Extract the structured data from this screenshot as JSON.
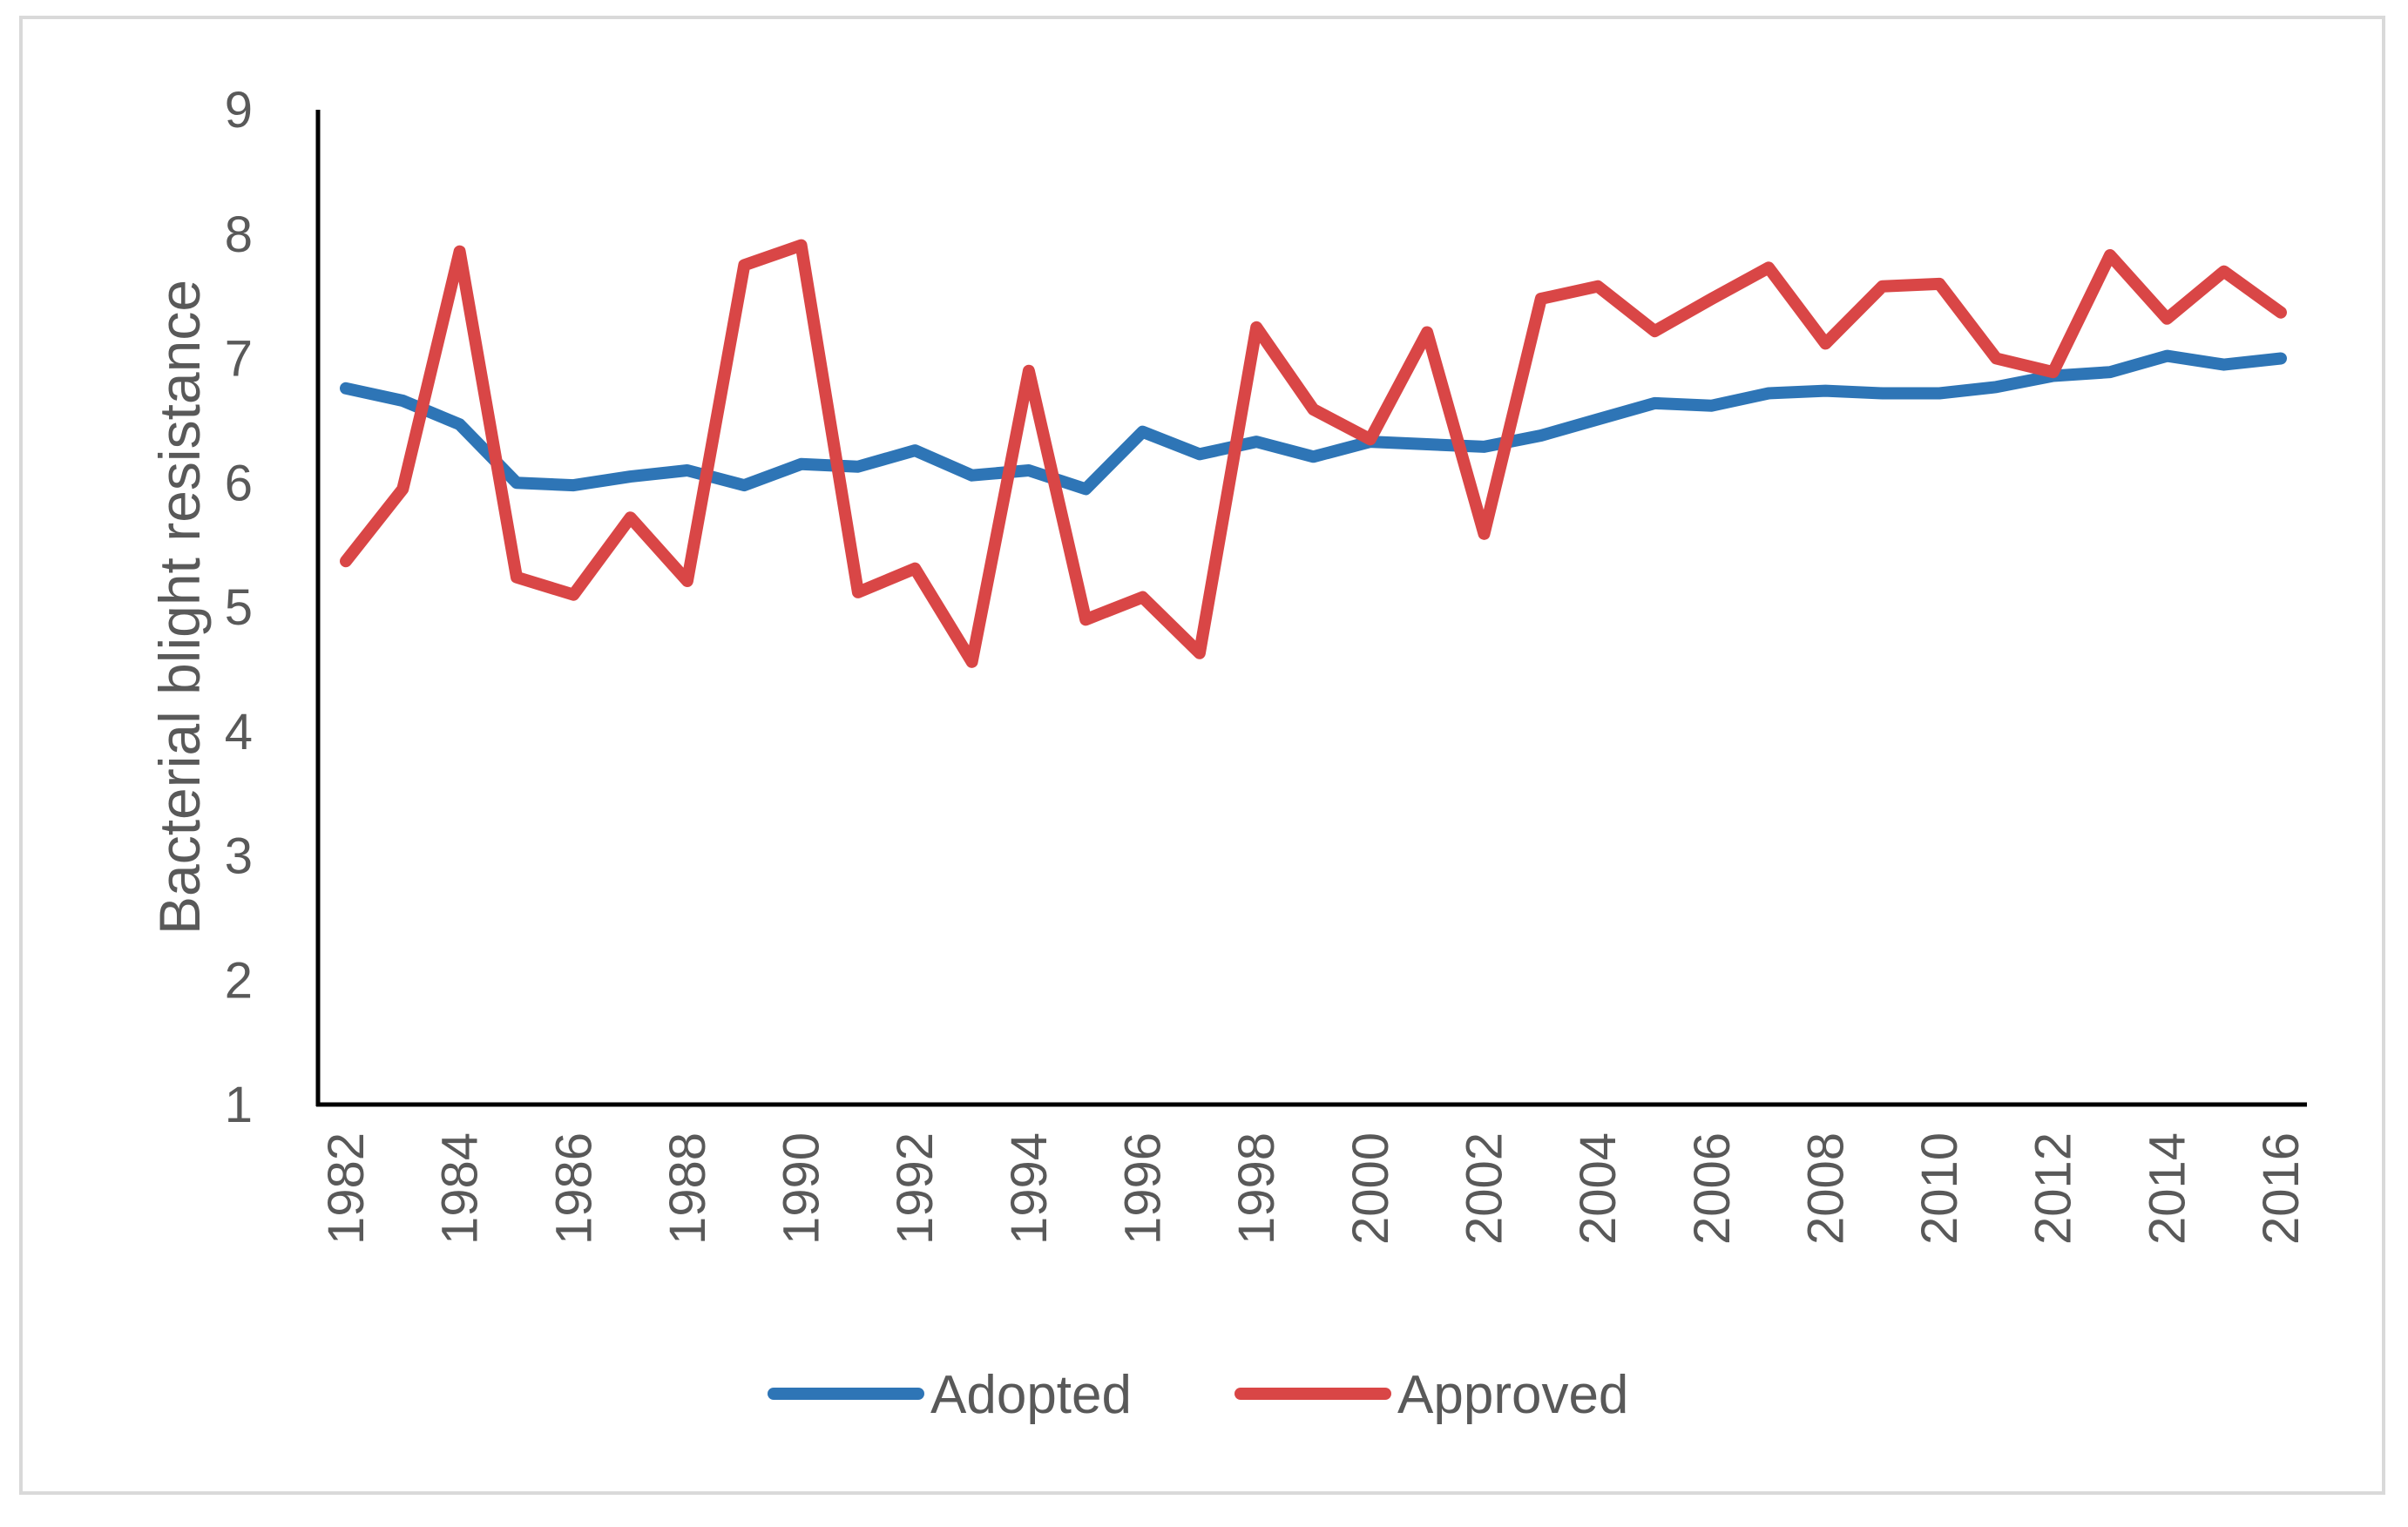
{
  "chart_data": {
    "type": "line",
    "title": "",
    "xlabel": "",
    "ylabel": "Bacterial blight resistance",
    "ylim": [
      1,
      9
    ],
    "yticks": [
      1,
      2,
      3,
      4,
      5,
      6,
      7,
      8,
      9
    ],
    "x": [
      1982,
      1983,
      1984,
      1985,
      1986,
      1987,
      1988,
      1989,
      1990,
      1991,
      1992,
      1993,
      1994,
      1995,
      1996,
      1997,
      1998,
      1999,
      2000,
      2001,
      2002,
      2003,
      2004,
      2005,
      2006,
      2007,
      2008,
      2009,
      2010,
      2011,
      2012,
      2013,
      2014,
      2015,
      2016
    ],
    "xtick_labels": [
      "1982",
      "1984",
      "1986",
      "1988",
      "1990",
      "1992",
      "1994",
      "1996",
      "1998",
      "2000",
      "2002",
      "2004",
      "2006",
      "2008",
      "2010",
      "2012",
      "2014",
      "2016"
    ],
    "grid": false,
    "legend_position": "bottom",
    "series": [
      {
        "name": "Adopted",
        "color": "#2e75b6",
        "values": [
          6.76,
          6.66,
          6.47,
          6.0,
          5.98,
          6.05,
          6.1,
          5.98,
          6.15,
          6.13,
          6.26,
          6.06,
          6.1,
          5.95,
          6.41,
          6.23,
          6.33,
          6.21,
          6.33,
          6.31,
          6.29,
          6.38,
          6.51,
          6.64,
          6.62,
          6.72,
          6.74,
          6.72,
          6.72,
          6.77,
          6.86,
          6.89,
          7.02,
          6.95,
          7.0
        ]
      },
      {
        "name": "Approved",
        "color": "#d94646",
        "values": [
          5.37,
          5.95,
          7.86,
          5.24,
          5.1,
          5.72,
          5.21,
          7.75,
          7.91,
          5.12,
          5.31,
          4.56,
          6.9,
          4.9,
          5.08,
          4.63,
          7.25,
          6.59,
          6.35,
          7.21,
          5.59,
          7.48,
          7.58,
          7.22,
          7.48,
          7.73,
          7.12,
          7.58,
          7.6,
          7.0,
          6.89,
          7.83,
          7.32,
          7.7,
          7.37
        ]
      }
    ]
  }
}
